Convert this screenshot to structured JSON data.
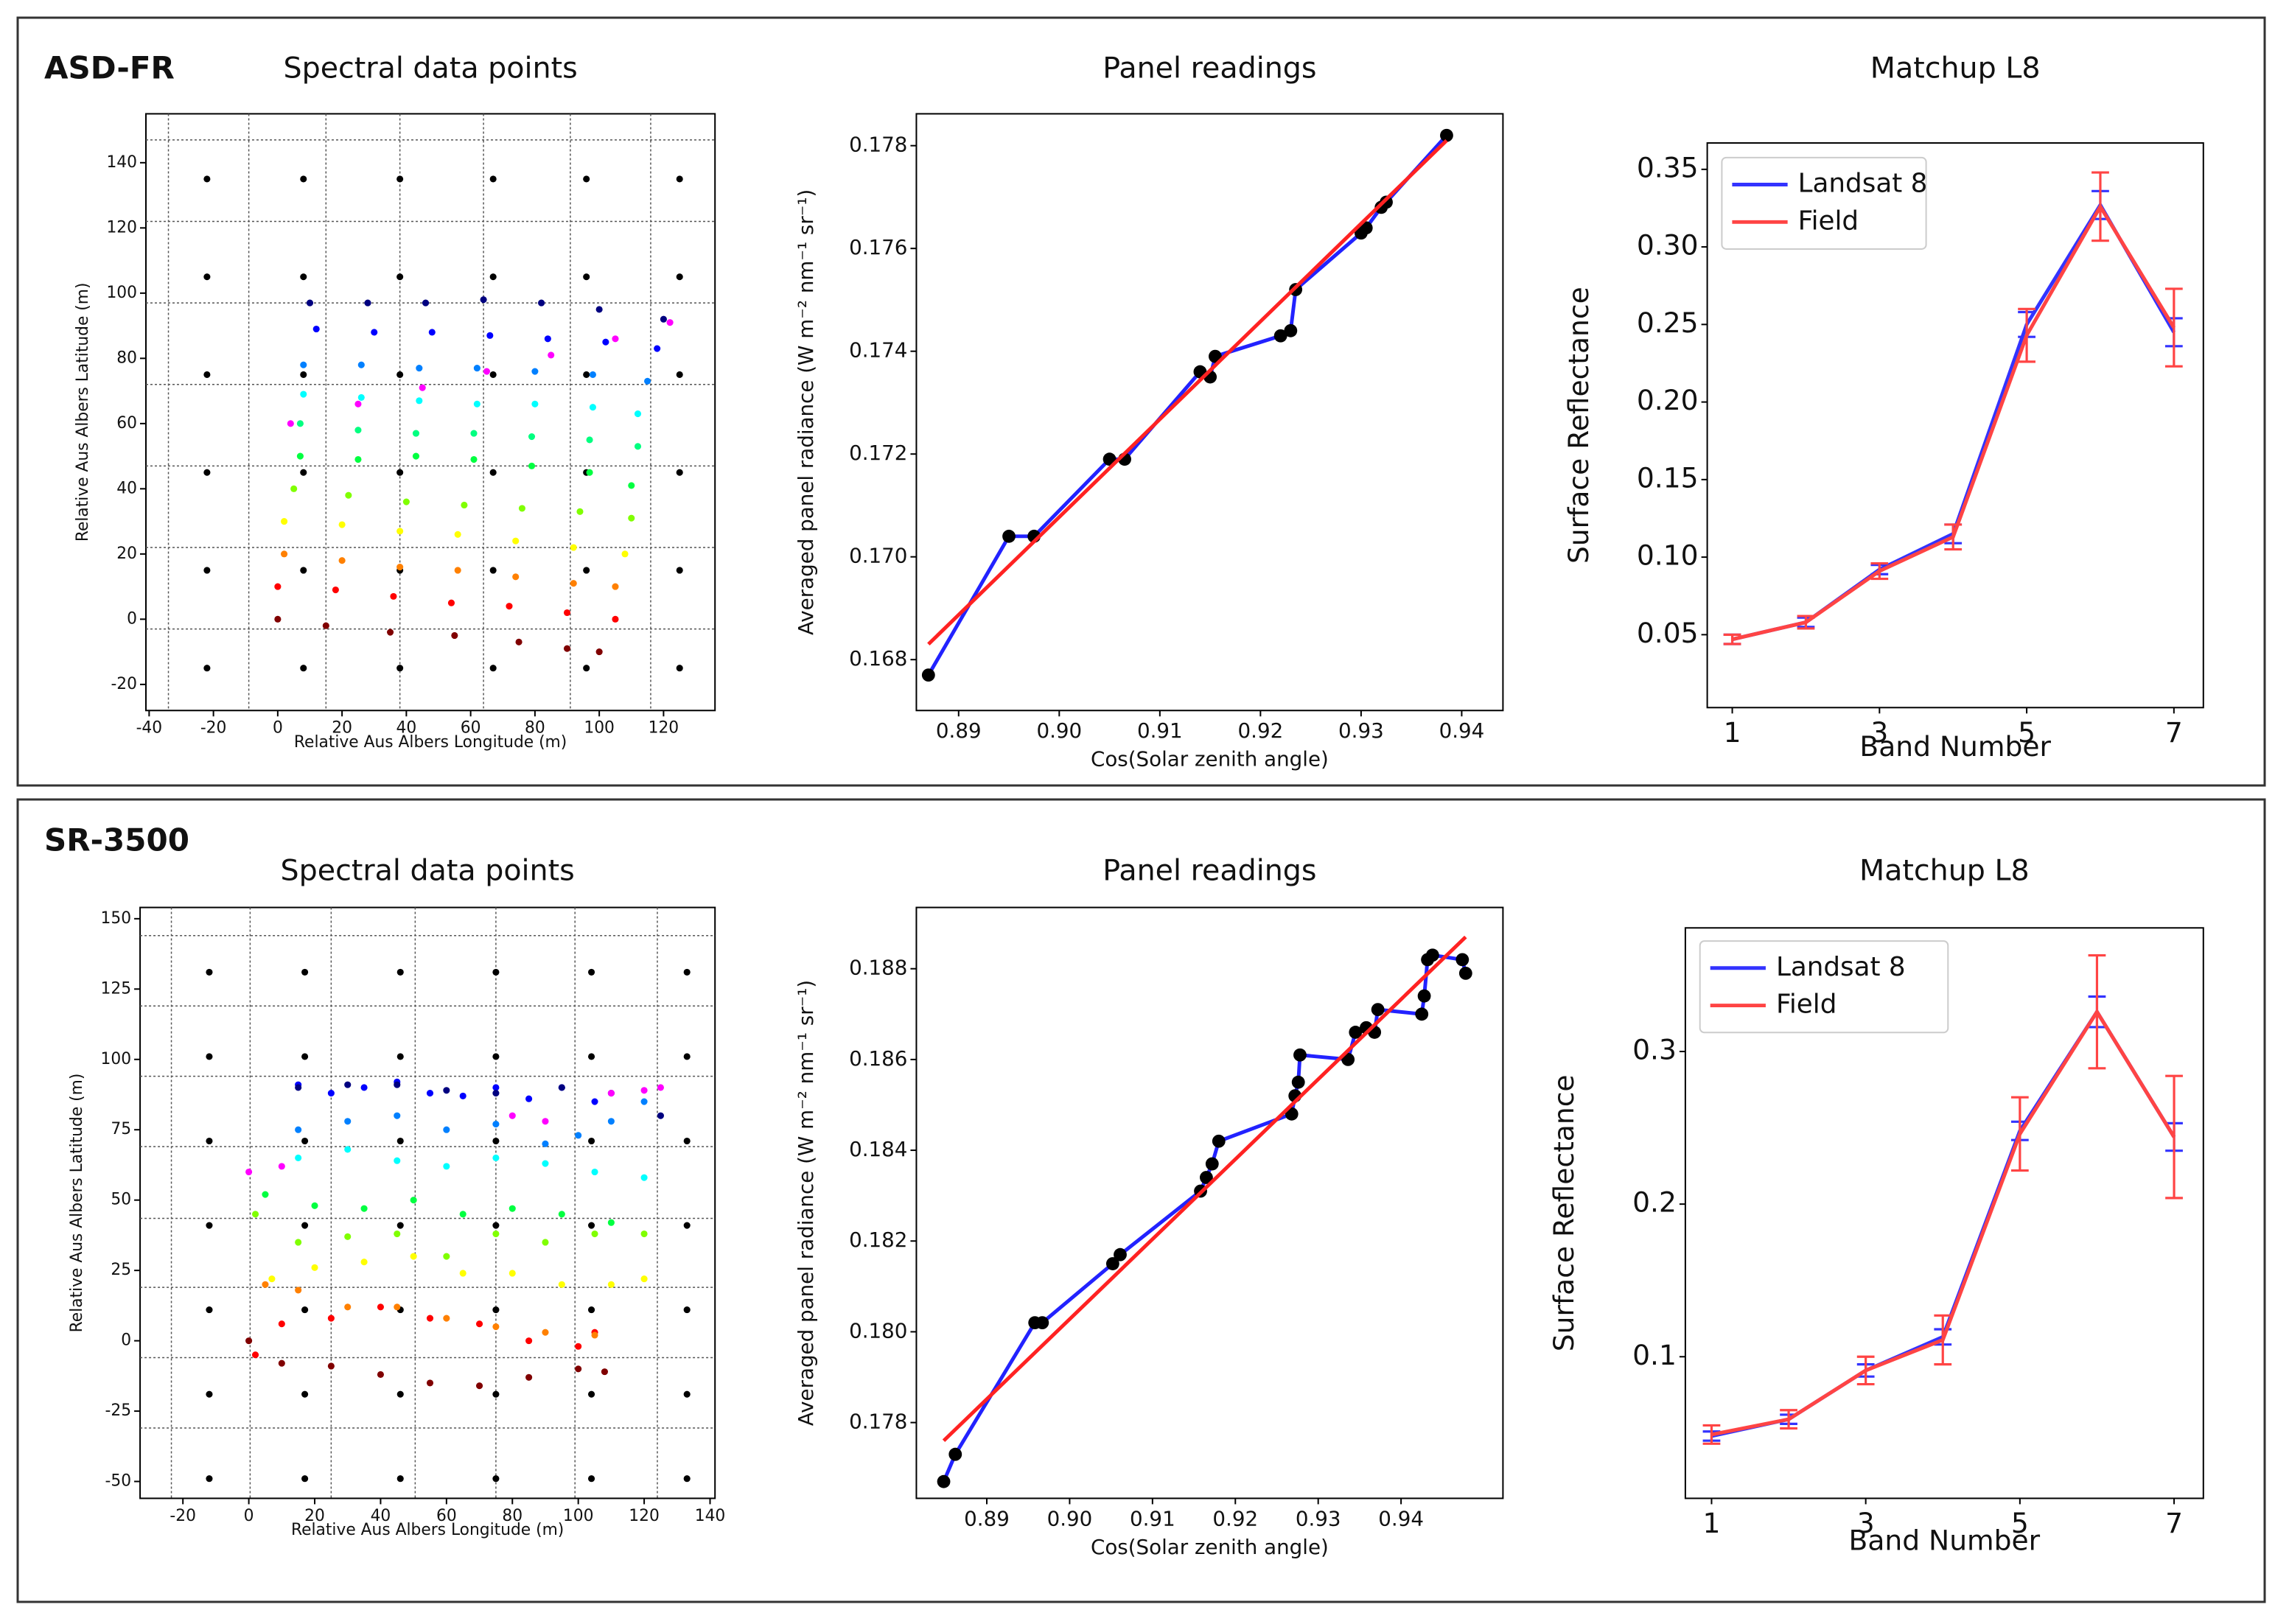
{
  "panel_labels": [
    "ASD-FR",
    "SR-3500"
  ],
  "chart_data": [
    {
      "type": "scatter",
      "title": "Spectral data points",
      "x_label": "Relative Aus Albers Longitude (m)",
      "y_label": "Relative Aus Albers Latitude (m)",
      "xlim": [
        -41,
        136
      ],
      "ylim": [
        -28,
        155
      ],
      "xticks": [
        -40,
        -20,
        0,
        20,
        40,
        60,
        80,
        100,
        120
      ],
      "yticks": [
        -20,
        0,
        20,
        40,
        60,
        80,
        100,
        120,
        140
      ],
      "hlines": [
        -3,
        22,
        47,
        72,
        97,
        122,
        147
      ],
      "vlines": [
        -34,
        -9,
        15,
        38,
        64,
        91,
        116
      ],
      "series": [
        {
          "color": "#000000",
          "x": [
            -22,
            8,
            38,
            67,
            96,
            125,
            -22,
            8,
            38,
            67,
            96,
            125,
            -22,
            8,
            38,
            67,
            96,
            125,
            -22,
            8,
            38,
            67,
            96,
            125,
            -22,
            8,
            38,
            67,
            96,
            125,
            -22,
            8,
            38,
            67,
            96,
            125
          ],
          "values": [
            135,
            135,
            135,
            135,
            135,
            135,
            105,
            105,
            105,
            105,
            105,
            105,
            75,
            75,
            75,
            75,
            75,
            75,
            45,
            45,
            45,
            45,
            45,
            45,
            15,
            15,
            15,
            15,
            15,
            15,
            -15,
            -15,
            -15,
            -15,
            -15,
            -15
          ]
        },
        {
          "color": "#800000",
          "x": [
            0,
            15,
            35,
            55,
            75,
            90,
            100
          ],
          "values": [
            0,
            -2,
            -4,
            -5,
            -7,
            -9,
            -10
          ]
        },
        {
          "color": "#ff0000",
          "x": [
            0,
            18,
            36,
            54,
            72,
            90,
            105
          ],
          "values": [
            10,
            9,
            7,
            5,
            4,
            2,
            0
          ]
        },
        {
          "color": "#ff8000",
          "x": [
            2,
            20,
            38,
            56,
            74,
            92,
            105
          ],
          "values": [
            20,
            18,
            16,
            15,
            13,
            11,
            10
          ]
        },
        {
          "color": "#ffff00",
          "x": [
            2,
            20,
            38,
            56,
            74,
            92,
            108
          ],
          "values": [
            30,
            29,
            27,
            26,
            24,
            22,
            20
          ]
        },
        {
          "color": "#80ff00",
          "x": [
            5,
            22,
            40,
            58,
            76,
            94,
            110
          ],
          "values": [
            40,
            38,
            36,
            35,
            34,
            33,
            31
          ]
        },
        {
          "color": "#00ff40",
          "x": [
            7,
            25,
            43,
            61,
            79,
            97,
            110
          ],
          "values": [
            50,
            49,
            50,
            49,
            47,
            45,
            41
          ]
        },
        {
          "color": "#00ff80",
          "x": [
            7,
            25,
            43,
            61,
            79,
            97,
            112
          ],
          "values": [
            60,
            58,
            57,
            57,
            56,
            55,
            53
          ]
        },
        {
          "color": "#00ffff",
          "x": [
            8,
            26,
            44,
            62,
            80,
            98,
            112
          ],
          "values": [
            69,
            68,
            67,
            66,
            66,
            65,
            63
          ]
        },
        {
          "color": "#0080ff",
          "x": [
            8,
            26,
            44,
            62,
            80,
            98,
            115
          ],
          "values": [
            78,
            78,
            77,
            77,
            76,
            75,
            73
          ]
        },
        {
          "color": "#0000ff",
          "x": [
            12,
            30,
            48,
            66,
            84,
            102,
            118
          ],
          "values": [
            89,
            88,
            88,
            87,
            86,
            85,
            83
          ]
        },
        {
          "color": "#000080",
          "x": [
            10,
            28,
            46,
            64,
            82,
            100,
            120
          ],
          "values": [
            97,
            97,
            97,
            98,
            97,
            95,
            92
          ]
        },
        {
          "color": "#ff00ff",
          "x": [
            4,
            25,
            45,
            65,
            85,
            105,
            122
          ],
          "values": [
            60,
            66,
            71,
            76,
            81,
            86,
            91
          ]
        }
      ]
    },
    {
      "type": "line",
      "title": "Panel readings",
      "x_label": "Cos(Solar zenith angle)",
      "y_label": "Averaged panel radiance (W m⁻² nm⁻¹ sr⁻¹)",
      "xlim": [
        0.8858,
        0.9441
      ],
      "ylim": [
        0.16701,
        0.17862
      ],
      "xticks": [
        0.89,
        {
          "value": 0.9,
          "label": "0.90"
        },
        0.91,
        0.92,
        0.93,
        0.94
      ],
      "yticks": [
        0.168,
        {
          "value": 0.17,
          "label": "0.170"
        },
        0.172,
        0.174,
        0.176,
        0.178
      ],
      "series": [
        {
          "color": "#2222ff",
          "marker_color": "#000000",
          "x": [
            0.887,
            0.895,
            0.8975,
            0.905,
            0.9065,
            0.914,
            0.915,
            0.9155,
            0.922,
            0.923,
            0.9235,
            0.93,
            0.9305,
            0.932,
            0.9325,
            0.9385
          ],
          "values": [
            0.1677,
            0.1704,
            0.1704,
            0.1719,
            0.1719,
            0.1736,
            0.1735,
            0.1739,
            0.1743,
            0.1744,
            0.1752,
            0.1763,
            0.1764,
            0.1768,
            0.1769,
            0.1782
          ]
        },
        {
          "color": "#ff2222",
          "x": [
            0.887,
            0.9385
          ],
          "values": [
            0.1683,
            0.1781
          ]
        }
      ]
    },
    {
      "type": "line",
      "title": "Matchup L8",
      "x_label": "Band Number",
      "y_label": "Surface Reflectance",
      "xlim": [
        0.66,
        7.4
      ],
      "ylim": [
        0.003,
        0.367
      ],
      "xticks": [
        1,
        3,
        5,
        7
      ],
      "yticks": [
        0.05,
        {
          "value": 0.1,
          "label": "0.10"
        },
        0.15,
        {
          "value": 0.2,
          "label": "0.20"
        },
        0.25,
        {
          "value": 0.3,
          "label": "0.30"
        },
        0.35
      ],
      "legend": "upper left",
      "series": [
        {
          "name": "Landsat 8",
          "color": "#3333ff",
          "x": [
            1,
            2,
            3,
            4,
            5,
            6,
            7
          ],
          "values": [
            0.047,
            0.058,
            0.092,
            0.115,
            0.25,
            0.327,
            0.245
          ],
          "errors": [
            0.003,
            0.003,
            0.003,
            0.006,
            0.008,
            0.009,
            0.009
          ]
        },
        {
          "name": "Field",
          "color": "#ff4444",
          "x": [
            1,
            2,
            3,
            4,
            5,
            6,
            7
          ],
          "values": [
            0.047,
            0.058,
            0.091,
            0.113,
            0.243,
            0.326,
            0.248
          ],
          "errors": [
            0.003,
            0.004,
            0.005,
            0.008,
            0.017,
            0.022,
            0.025
          ]
        }
      ]
    },
    {
      "type": "scatter",
      "title": "Spectral data points",
      "x_label": "Relative Aus Albers Longitude (m)",
      "y_label": "Relative Aus Albers Latitude (m)",
      "xlim": [
        -33,
        141.5
      ],
      "ylim": [
        -56,
        154
      ],
      "xticks": [
        -20,
        0,
        20,
        40,
        60,
        80,
        100,
        120,
        140
      ],
      "yticks": [
        -50,
        -25,
        0,
        25,
        50,
        75,
        100,
        125,
        150
      ],
      "hlines": [
        -31,
        -6,
        19,
        43.5,
        69,
        94,
        119,
        144
      ],
      "vlines": [
        -23.5,
        0.4,
        25,
        50.5,
        75,
        99,
        124
      ],
      "series": [
        {
          "color": "#000000",
          "x": [
            -12,
            17,
            46,
            75,
            104,
            133,
            -12,
            17,
            46,
            75,
            104,
            133,
            -12,
            17,
            46,
            75,
            104,
            133,
            -12,
            17,
            46,
            75,
            104,
            133,
            -12,
            17,
            46,
            75,
            104,
            133,
            -12,
            17,
            46,
            75,
            104,
            133,
            -12,
            17,
            46,
            75,
            104,
            133
          ],
          "values": [
            131,
            131,
            131,
            131,
            131,
            131,
            101,
            101,
            101,
            101,
            101,
            101,
            71,
            71,
            71,
            71,
            71,
            71,
            41,
            41,
            41,
            41,
            41,
            41,
            11,
            11,
            11,
            11,
            11,
            11,
            -19,
            -19,
            -19,
            -19,
            -19,
            -19,
            -49,
            -49,
            -49,
            -49,
            -49,
            -49
          ]
        },
        {
          "color": "#800000",
          "x": [
            0,
            10,
            25,
            40,
            55,
            70,
            85,
            100,
            108
          ],
          "values": [
            0,
            -8,
            -9,
            -12,
            -15,
            -16,
            -13,
            -10,
            -11
          ]
        },
        {
          "color": "#ff0000",
          "x": [
            2,
            10,
            25,
            40,
            55,
            70,
            85,
            100,
            105
          ],
          "values": [
            -5,
            6,
            8,
            12,
            8,
            6,
            0,
            -2,
            3
          ]
        },
        {
          "color": "#ff8000",
          "x": [
            5,
            15,
            30,
            45,
            60,
            75,
            90,
            105
          ],
          "values": [
            20,
            18,
            12,
            12,
            8,
            5,
            3,
            2
          ]
        },
        {
          "color": "#ffff00",
          "x": [
            7,
            20,
            35,
            50,
            65,
            80,
            95,
            110,
            120
          ],
          "values": [
            22,
            26,
            28,
            30,
            24,
            24,
            20,
            20,
            22
          ]
        },
        {
          "color": "#80ff00",
          "x": [
            2,
            15,
            30,
            45,
            60,
            75,
            90,
            105,
            120
          ],
          "values": [
            45,
            35,
            37,
            38,
            30,
            38,
            35,
            38,
            38
          ]
        },
        {
          "color": "#00ff40",
          "x": [
            5,
            20,
            35,
            50,
            65,
            80,
            95,
            110
          ],
          "values": [
            52,
            48,
            47,
            50,
            45,
            47,
            45,
            42
          ]
        },
        {
          "color": "#00ffff",
          "x": [
            15,
            30,
            45,
            60,
            75,
            90,
            105,
            120
          ],
          "values": [
            65,
            68,
            64,
            62,
            65,
            63,
            60,
            58
          ]
        },
        {
          "color": "#0080ff",
          "x": [
            15,
            30,
            45,
            60,
            75,
            90,
            100,
            110,
            120
          ],
          "values": [
            75,
            78,
            80,
            75,
            77,
            70,
            73,
            78,
            85
          ]
        },
        {
          "color": "#0000ff",
          "x": [
            15,
            25,
            35,
            45,
            55,
            65,
            75,
            85,
            95,
            105
          ],
          "values": [
            91,
            88,
            90,
            92,
            88,
            87,
            90,
            86,
            90,
            85
          ]
        },
        {
          "color": "#000080",
          "x": [
            15,
            30,
            45,
            60,
            75,
            95,
            110,
            125
          ],
          "values": [
            90,
            91,
            91,
            89,
            88,
            90,
            88,
            80
          ]
        },
        {
          "color": "#ff00ff",
          "x": [
            0,
            10,
            80,
            90,
            110,
            120,
            125
          ],
          "values": [
            60,
            62,
            80,
            78,
            88,
            89,
            90
          ]
        }
      ]
    },
    {
      "type": "line",
      "title": "Panel readings",
      "x_label": "Cos(Solar zenith angle)",
      "y_label": "Averaged panel radiance (W m⁻² nm⁻¹ sr⁻¹)",
      "xlim": [
        0.8815,
        0.9523
      ],
      "ylim": [
        0.17633,
        0.18935
      ],
      "xticks": [
        0.89,
        {
          "value": 0.9,
          "label": "0.90"
        },
        0.91,
        0.92,
        0.93,
        0.94
      ],
      "yticks": [
        0.178,
        {
          "value": 0.18,
          "label": "0.180"
        },
        0.182,
        0.184,
        0.186,
        0.188
      ],
      "series": [
        {
          "color": "#2222ff",
          "marker_color": "#000000",
          "x": [
            0.8848,
            0.8862,
            0.8958,
            0.8967,
            0.9052,
            0.9061,
            0.9158,
            0.9165,
            0.9172,
            0.918,
            0.9268,
            0.9272,
            0.9276,
            0.9278,
            0.9336,
            0.9345,
            0.9358,
            0.9368,
            0.9372,
            0.9425,
            0.9428,
            0.9432,
            0.9438,
            0.9474,
            0.9478
          ],
          "values": [
            0.1767,
            0.1773,
            0.1802,
            0.1802,
            0.1815,
            0.1817,
            0.1831,
            0.1834,
            0.1837,
            0.1842,
            0.1848,
            0.1852,
            0.1855,
            0.1861,
            0.186,
            0.1866,
            0.1867,
            0.1866,
            0.1871,
            0.187,
            0.1874,
            0.1882,
            0.1883,
            0.1882,
            0.1879
          ]
        },
        {
          "color": "#ff2222",
          "x": [
            0.8848,
            0.9478
          ],
          "values": [
            0.1776,
            0.1887
          ]
        }
      ]
    },
    {
      "type": "line",
      "title": "Matchup L8",
      "x_label": "Band Number",
      "y_label": "Surface Reflectance",
      "xlim": [
        0.66,
        7.38
      ],
      "ylim": [
        0.0072,
        0.381
      ],
      "xticks": [
        1,
        3,
        5,
        7
      ],
      "yticks": [
        0.1,
        0.2,
        0.3
      ],
      "legend": "upper left",
      "series": [
        {
          "name": "Landsat 8",
          "color": "#3333ff",
          "x": [
            1,
            2,
            3,
            4,
            5,
            6,
            7
          ],
          "values": [
            0.048,
            0.059,
            0.091,
            0.113,
            0.248,
            0.326,
            0.244
          ],
          "errors": [
            0.003,
            0.003,
            0.004,
            0.005,
            0.006,
            0.01,
            0.009
          ]
        },
        {
          "name": "Field",
          "color": "#ff4444",
          "x": [
            1,
            2,
            3,
            4,
            5,
            6,
            7
          ],
          "values": [
            0.049,
            0.059,
            0.091,
            0.111,
            0.246,
            0.326,
            0.244
          ],
          "errors": [
            0.006,
            0.006,
            0.009,
            0.016,
            0.024,
            0.037,
            0.04
          ]
        }
      ]
    }
  ]
}
